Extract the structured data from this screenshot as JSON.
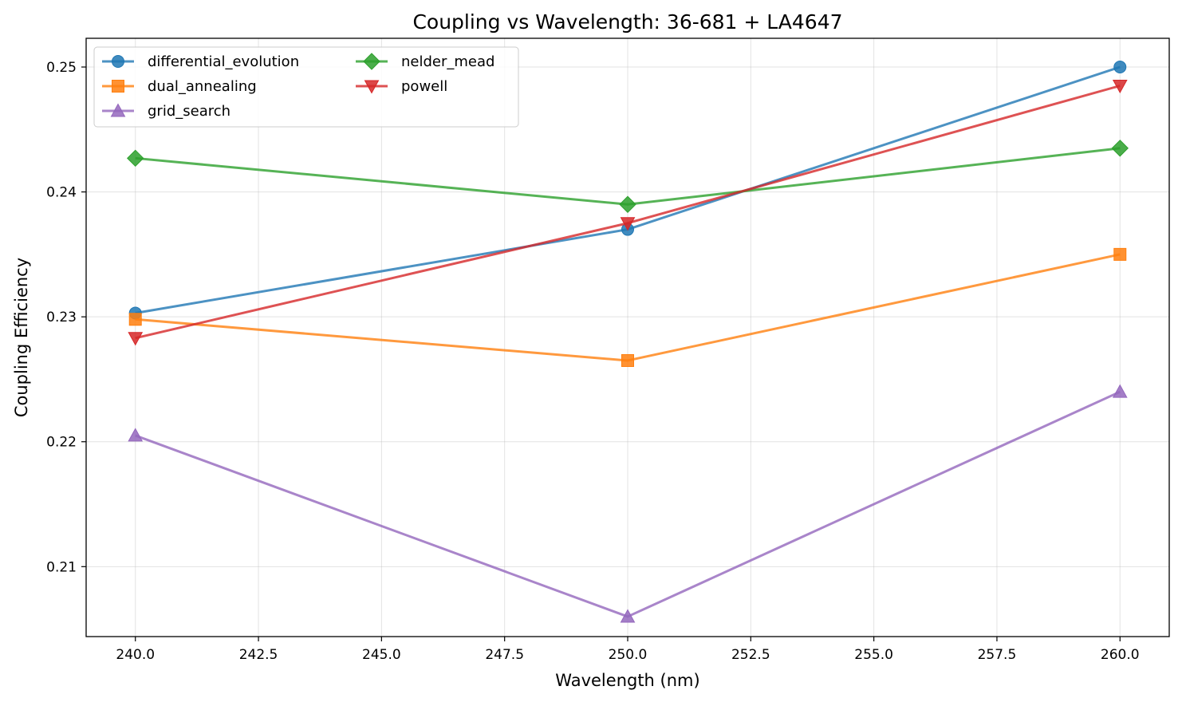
{
  "chart_data": {
    "type": "line",
    "title": "Coupling vs Wavelength: 36-681 + LA4647",
    "xlabel": "Wavelength (nm)",
    "ylabel": "Coupling Efficiency",
    "x": [
      240,
      250,
      260
    ],
    "xlim": [
      239,
      261
    ],
    "ylim": [
      0.2044,
      0.2523
    ],
    "xticks": [
      240.0,
      242.5,
      245.0,
      247.5,
      250.0,
      252.5,
      255.0,
      257.5,
      260.0
    ],
    "xtick_labels": [
      "240.0",
      "242.5",
      "245.0",
      "247.5",
      "250.0",
      "252.5",
      "255.0",
      "257.5",
      "260.0"
    ],
    "yticks": [
      0.21,
      0.22,
      0.23,
      0.24,
      0.25
    ],
    "ytick_labels": [
      "0.21",
      "0.22",
      "0.23",
      "0.24",
      "0.25"
    ],
    "grid": true,
    "legend_position": "top-left",
    "legend_columns": 2,
    "series": [
      {
        "name": "differential_evolution",
        "values": [
          0.2303,
          0.237,
          0.25
        ],
        "color": "#1f77b4",
        "marker": "circle"
      },
      {
        "name": "dual_annealing",
        "values": [
          0.2298,
          0.2265,
          0.235
        ],
        "color": "#ff7f0e",
        "marker": "square"
      },
      {
        "name": "grid_search",
        "values": [
          0.2205,
          0.206,
          0.224
        ],
        "color": "#9467bd",
        "marker": "triangle-up"
      },
      {
        "name": "nelder_mead",
        "values": [
          0.2427,
          0.239,
          0.2435
        ],
        "color": "#2ca02c",
        "marker": "diamond"
      },
      {
        "name": "powell",
        "values": [
          0.2283,
          0.2375,
          0.2485
        ],
        "color": "#d62728",
        "marker": "triangle-down"
      }
    ]
  }
}
